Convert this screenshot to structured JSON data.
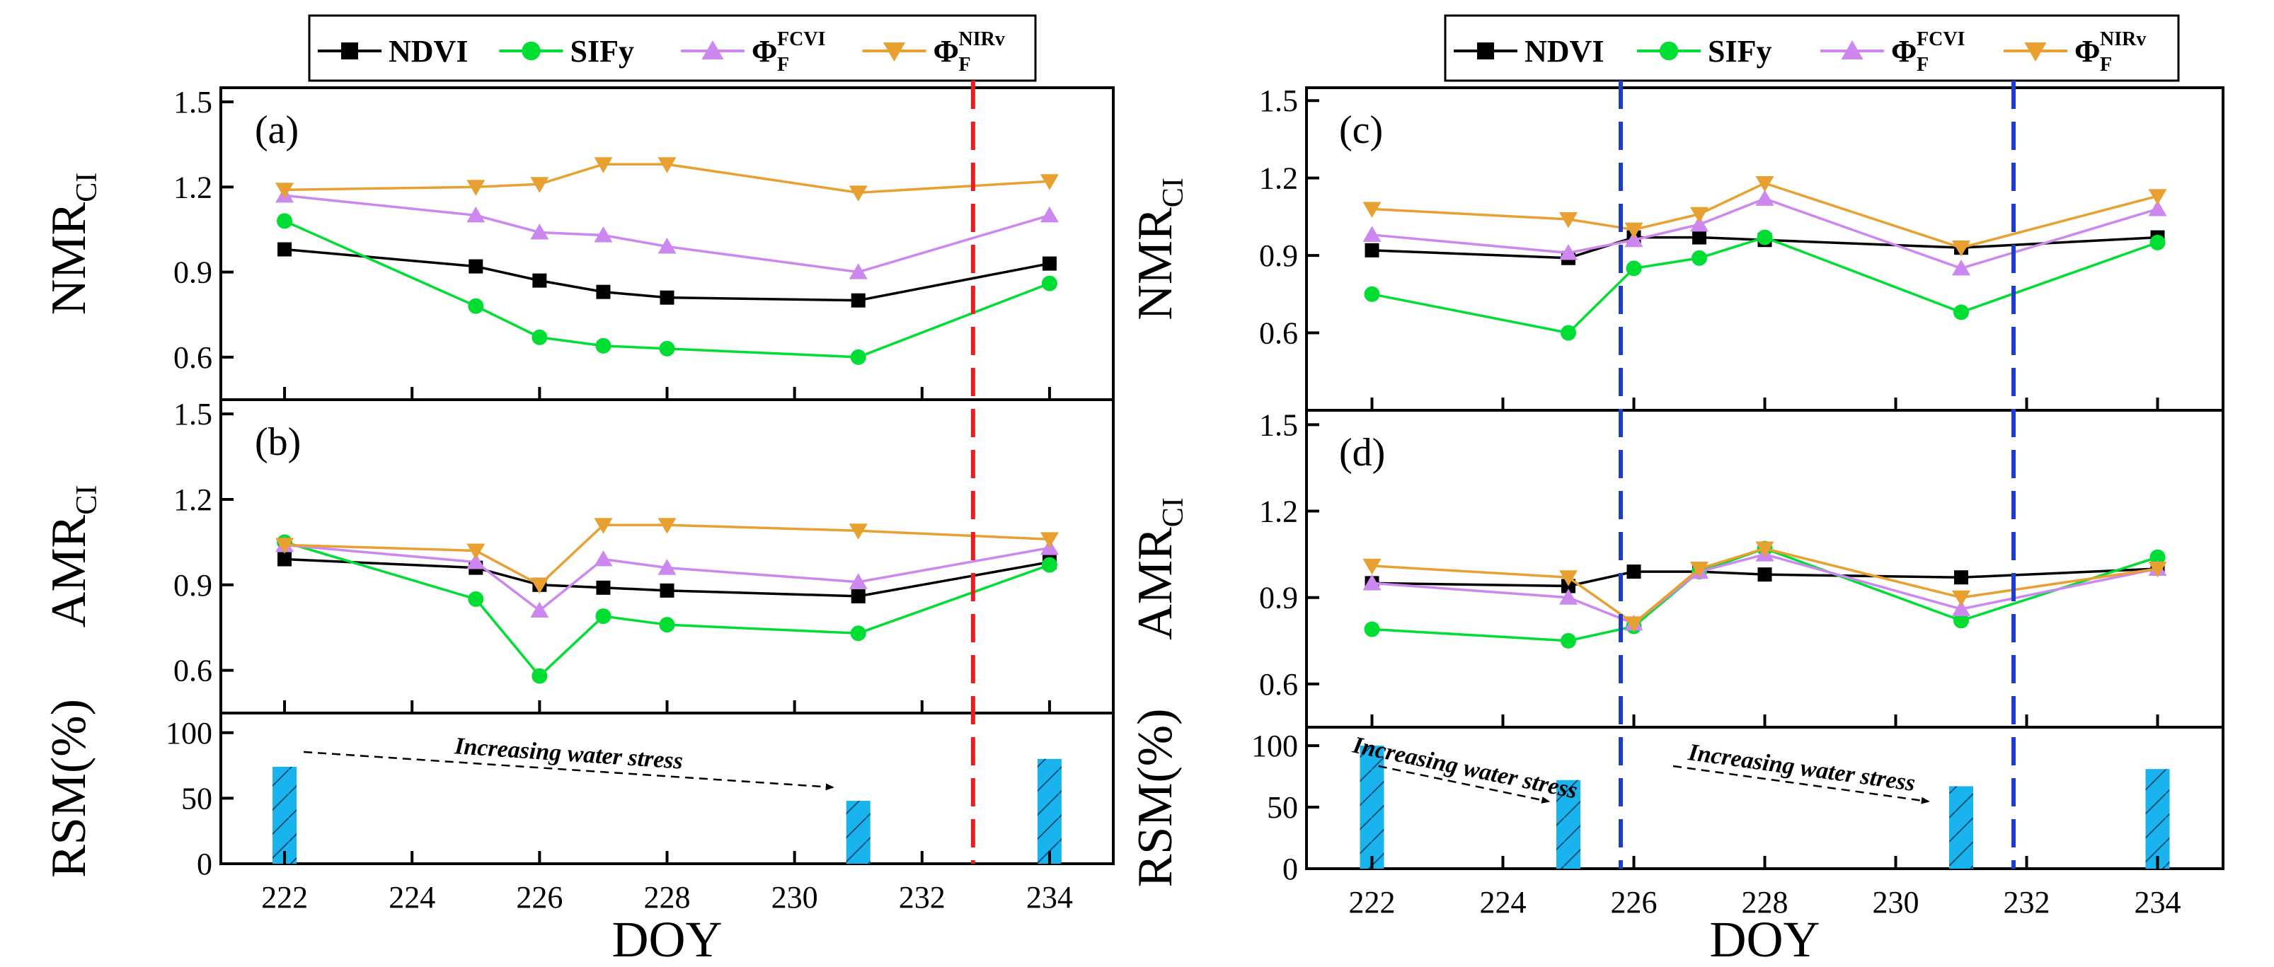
{
  "chart_data": [
    {
      "figure": "left",
      "type": "line",
      "legend": [
        {
          "key": "ndvi",
          "label": "NDVI",
          "color": "#000000",
          "marker": "square"
        },
        {
          "key": "sify",
          "label": "SIFy",
          "color": "#00dd33",
          "marker": "circle"
        },
        {
          "key": "fcvi",
          "label": "Φ",
          "sub": "F",
          "sup": "FCVI",
          "color": "#cc88ee",
          "marker": "triangle-up"
        },
        {
          "key": "nirv",
          "label": "Φ",
          "sub": "F",
          "sup": "NIRv",
          "color": "#e8a030",
          "marker": "triangle-down"
        }
      ],
      "x": [
        222,
        225,
        226,
        227,
        228,
        231,
        234
      ],
      "xlim": [
        221,
        235
      ],
      "xticks": [
        "222",
        "224",
        "226",
        "228",
        "230",
        "232",
        "234"
      ],
      "xlabel": "DOY",
      "marker_lines": [
        {
          "x": 232.8,
          "color": "#e62020"
        }
      ],
      "panels": [
        {
          "tag": "(a)",
          "ylabel": "NMR",
          "ylabel_sub": "CI",
          "ylim": [
            0.45,
            1.55
          ],
          "yticks": [
            "0.6",
            "0.9",
            "1.2",
            "1.5"
          ],
          "series": [
            {
              "key": "ndvi",
              "values": [
                0.98,
                0.92,
                0.87,
                0.83,
                0.81,
                0.8,
                0.93
              ]
            },
            {
              "key": "sify",
              "values": [
                1.08,
                0.78,
                0.67,
                0.64,
                0.63,
                0.6,
                0.86
              ]
            },
            {
              "key": "fcvi",
              "values": [
                1.17,
                1.1,
                1.04,
                1.03,
                0.99,
                0.9,
                1.1
              ]
            },
            {
              "key": "nirv",
              "values": [
                1.19,
                1.2,
                1.21,
                1.28,
                1.28,
                1.18,
                1.22
              ]
            }
          ]
        },
        {
          "tag": "(b)",
          "ylabel": "AMR",
          "ylabel_sub": "CI",
          "ylim": [
            0.45,
            1.55
          ],
          "yticks": [
            "0.6",
            "0.9",
            "1.2",
            "1.5"
          ],
          "series": [
            {
              "key": "ndvi",
              "values": [
                0.99,
                0.96,
                0.9,
                0.89,
                0.88,
                0.86,
                0.98
              ]
            },
            {
              "key": "sify",
              "values": [
                1.05,
                0.85,
                0.58,
                0.79,
                0.76,
                0.73,
                0.97
              ]
            },
            {
              "key": "fcvi",
              "values": [
                1.04,
                0.98,
                0.81,
                0.99,
                0.96,
                0.91,
                1.03
              ]
            },
            {
              "key": "nirv",
              "values": [
                1.04,
                1.02,
                0.9,
                1.11,
                1.11,
                1.09,
                1.06
              ]
            }
          ]
        }
      ],
      "rsm": {
        "ylabel": "RSM(%)",
        "ylim": [
          0,
          115
        ],
        "yticks": [
          "0",
          "50",
          "100"
        ],
        "bar_color": "#19b3ee",
        "bars": [
          {
            "x": 222,
            "value": 74
          },
          {
            "x": 231,
            "value": 48
          },
          {
            "x": 234,
            "value": 80
          }
        ],
        "annotations": [
          {
            "text": "Increasing water stress",
            "from": 222.3,
            "to": 230.6
          }
        ]
      }
    },
    {
      "figure": "right",
      "type": "line",
      "legend": [
        {
          "key": "ndvi",
          "label": "NDVI",
          "color": "#000000",
          "marker": "square"
        },
        {
          "key": "sify",
          "label": "SIFy",
          "color": "#00dd33",
          "marker": "circle"
        },
        {
          "key": "fcvi",
          "label": "Φ",
          "sub": "F",
          "sup": "FCVI",
          "color": "#cc88ee",
          "marker": "triangle-up"
        },
        {
          "key": "nirv",
          "label": "Φ",
          "sub": "F",
          "sup": "NIRv",
          "color": "#e8a030",
          "marker": "triangle-down"
        }
      ],
      "x": [
        222,
        225,
        226,
        227,
        228,
        231,
        234
      ],
      "xlim": [
        221,
        235
      ],
      "xticks": [
        "222",
        "224",
        "226",
        "228",
        "230",
        "232",
        "234"
      ],
      "xlabel": "DOY",
      "marker_lines": [
        {
          "x": 225.8,
          "color": "#1e3ec8"
        },
        {
          "x": 231.8,
          "color": "#1e3ec8"
        }
      ],
      "panels": [
        {
          "tag": "(c)",
          "ylabel": "NMR",
          "ylabel_sub": "CI",
          "ylim": [
            0.3,
            1.55
          ],
          "yticks": [
            "0.6",
            "0.9",
            "1.2",
            "1.5"
          ],
          "series": [
            {
              "key": "ndvi",
              "values": [
                0.92,
                0.89,
                0.97,
                0.97,
                0.96,
                0.93,
                0.97
              ]
            },
            {
              "key": "sify",
              "values": [
                0.75,
                0.6,
                0.85,
                0.89,
                0.97,
                0.68,
                0.95
              ]
            },
            {
              "key": "fcvi",
              "values": [
                0.98,
                0.91,
                0.96,
                1.02,
                1.12,
                0.85,
                1.08
              ]
            },
            {
              "key": "nirv",
              "values": [
                1.08,
                1.04,
                1.0,
                1.06,
                1.18,
                0.93,
                1.13
              ]
            }
          ]
        },
        {
          "tag": "(d)",
          "ylabel": "AMR",
          "ylabel_sub": "CI",
          "ylim": [
            0.45,
            1.55
          ],
          "yticks": [
            "0.6",
            "0.9",
            "1.2",
            "1.5"
          ],
          "series": [
            {
              "key": "ndvi",
              "values": [
                0.95,
                0.94,
                0.99,
                0.99,
                0.98,
                0.97,
                1.0
              ]
            },
            {
              "key": "sify",
              "values": [
                0.79,
                0.75,
                0.8,
                0.99,
                1.07,
                0.82,
                1.04
              ]
            },
            {
              "key": "fcvi",
              "values": [
                0.95,
                0.9,
                0.81,
                0.99,
                1.05,
                0.86,
                1.0
              ]
            },
            {
              "key": "nirv",
              "values": [
                1.01,
                0.97,
                0.81,
                1.0,
                1.07,
                0.9,
                1.0
              ]
            }
          ]
        }
      ],
      "rsm": {
        "ylabel": "RSM(%)",
        "ylim": [
          0,
          115
        ],
        "yticks": [
          "0",
          "50",
          "100"
        ],
        "bar_color": "#19b3ee",
        "bars": [
          {
            "x": 222,
            "value": 100
          },
          {
            "x": 225,
            "value": 72
          },
          {
            "x": 231,
            "value": 67
          },
          {
            "x": 234,
            "value": 81
          }
        ],
        "annotations": [
          {
            "text": "Increasing water stress",
            "from": 222.1,
            "to": 224.7
          },
          {
            "text": "Increasing water stress",
            "from": 226.6,
            "to": 230.5
          }
        ]
      }
    }
  ]
}
